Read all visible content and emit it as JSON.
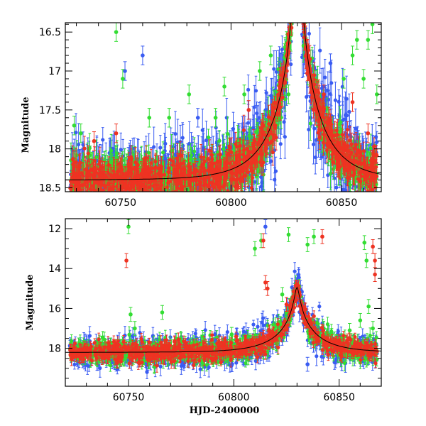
{
  "chart_data": [
    {
      "type": "scatter",
      "panel": "top",
      "title": "",
      "xlabel": "",
      "ylabel": "Magnitude",
      "xlim": [
        60725,
        60868
      ],
      "ylim": [
        18.55,
        16.38
      ],
      "y_inverted": true,
      "xticks": [
        60750,
        60800,
        60850
      ],
      "yticks": [
        16.5,
        17,
        17.5,
        18,
        18.5
      ],
      "ytick_labels": [
        "16.5",
        "17",
        "17.5",
        "18",
        "18.5"
      ],
      "grid": false,
      "legend": "none",
      "model_curve": {
        "t0": 60830.0,
        "u0": 0.05,
        "tE": 20,
        "base": 18.4,
        "color": "#000000"
      },
      "series": [
        {
          "color": "#3a5cf2",
          "role": "blue-band",
          "scatter": 0.22,
          "outliers": [
            [
              60752,
              17.0
            ],
            [
              60760,
              16.8
            ],
            [
              60785,
              17.6
            ],
            [
              60822,
              17.4
            ],
            [
              60836,
              17.6
            ],
            [
              60845,
              16.9
            ]
          ]
        },
        {
          "color": "#33dd33",
          "role": "green-band",
          "scatter": 0.16,
          "outliers": [
            [
              60729,
              17.7
            ],
            [
              60732,
              17.8
            ],
            [
              60748,
              16.5
            ],
            [
              60751,
              17.1
            ],
            [
              60763,
              17.6
            ],
            [
              60772,
              17.6
            ],
            [
              60781,
              17.3
            ],
            [
              60793,
              17.6
            ],
            [
              60797,
              17.2
            ],
            [
              60806,
              17.3
            ],
            [
              60813,
              17.0
            ],
            [
              60818,
              16.8
            ],
            [
              60826,
              17.3
            ],
            [
              60851,
              17.1
            ],
            [
              60855,
              16.8
            ],
            [
              60857,
              16.6
            ],
            [
              60860,
              17.1
            ],
            [
              60862,
              16.6
            ],
            [
              60864,
              16.4
            ],
            [
              60866,
              17.3
            ]
          ]
        },
        {
          "color": "#ee3322",
          "role": "red-band",
          "scatter": 0.14,
          "outliers": [
            [
              60738,
              17.9
            ],
            [
              60748,
              17.8
            ],
            [
              60808,
              17.5
            ],
            [
              60820,
              17.7
            ],
            [
              60842,
              17.3
            ],
            [
              60855,
              17.4
            ],
            [
              60862,
              17.8
            ]
          ]
        }
      ]
    },
    {
      "type": "scatter",
      "panel": "bottom",
      "title": "",
      "xlabel": "HJD-2400000",
      "ylabel": "Magnitude",
      "xlim": [
        60720,
        60870
      ],
      "ylim": [
        19.9,
        11.5
      ],
      "y_inverted": true,
      "xticks": [
        60750,
        60800,
        60850
      ],
      "yticks": [
        12,
        14,
        16,
        18
      ],
      "ytick_labels": [
        "12",
        "14",
        "16",
        "18"
      ],
      "grid": false,
      "legend": "none",
      "model_curve": {
        "t0": 60830.0,
        "u0": 0.05,
        "tE": 20,
        "base": 18.2,
        "color": "#000000"
      },
      "series": [
        {
          "color": "#3a5cf2",
          "role": "blue-band",
          "scatter": 0.35,
          "outliers": [
            [
              60815,
              11.9
            ],
            [
              60825,
              17.3
            ],
            [
              60835,
              18.8
            ]
          ]
        },
        {
          "color": "#33dd33",
          "role": "green-band",
          "scatter": 0.3,
          "outliers": [
            [
              60750,
              11.9
            ],
            [
              60751,
              16.3
            ],
            [
              60753,
              17.0
            ],
            [
              60766,
              16.2
            ],
            [
              60799,
              17.3
            ],
            [
              60810,
              13.0
            ],
            [
              60813,
              12.6
            ],
            [
              60823,
              15.3
            ],
            [
              60826,
              12.3
            ],
            [
              60835,
              12.8
            ],
            [
              60838,
              12.4
            ],
            [
              60855,
              17.1
            ],
            [
              60860,
              16.6
            ],
            [
              60862,
              12.7
            ],
            [
              60863,
              13.6
            ],
            [
              60864,
              15.9
            ],
            [
              60866,
              17.0
            ]
          ]
        },
        {
          "color": "#ee3322",
          "role": "red-band",
          "scatter": 0.25,
          "outliers": [
            [
              60749,
              13.6
            ],
            [
              60814,
              12.6
            ],
            [
              60815,
              14.7
            ],
            [
              60816,
              15.0
            ],
            [
              60825,
              15.8
            ],
            [
              60842,
              12.4
            ],
            [
              60866,
              12.9
            ],
            [
              60867,
              13.6
            ],
            [
              60867,
              14.3
            ]
          ]
        }
      ]
    }
  ]
}
